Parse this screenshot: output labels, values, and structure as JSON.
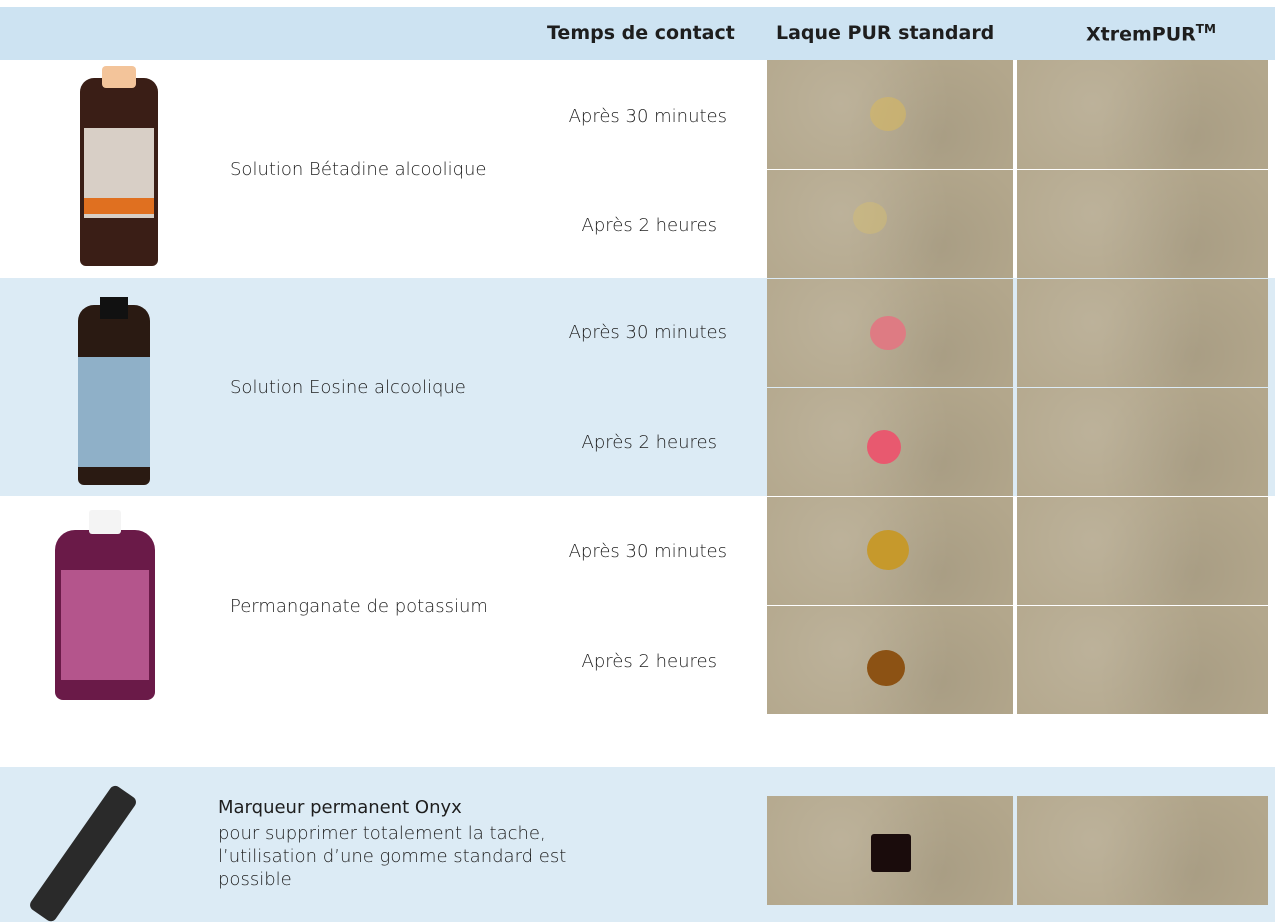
{
  "header": {
    "contact": "Temps de contact",
    "standard": "Laque PUR standard",
    "xtrem": "XtremPUR",
    "xtrem_sup": "TM"
  },
  "rows": [
    {
      "product": "Solution Bétadine alcoolique",
      "times": [
        "Après 30 minutes",
        "Après 2 heures"
      ]
    },
    {
      "product": "Solution Eosine alcoolique",
      "times": [
        "Après 30 minutes",
        "Après 2 heures"
      ]
    },
    {
      "product": "Permanganate de potassium",
      "times": [
        "Après 30 minutes",
        "Après 2 heures"
      ]
    }
  ],
  "marker": {
    "title": "Marqueur permanent Onyx",
    "note": "pour supprimer totalement la tache, l’utilisation d’une gomme standard est possible"
  }
}
